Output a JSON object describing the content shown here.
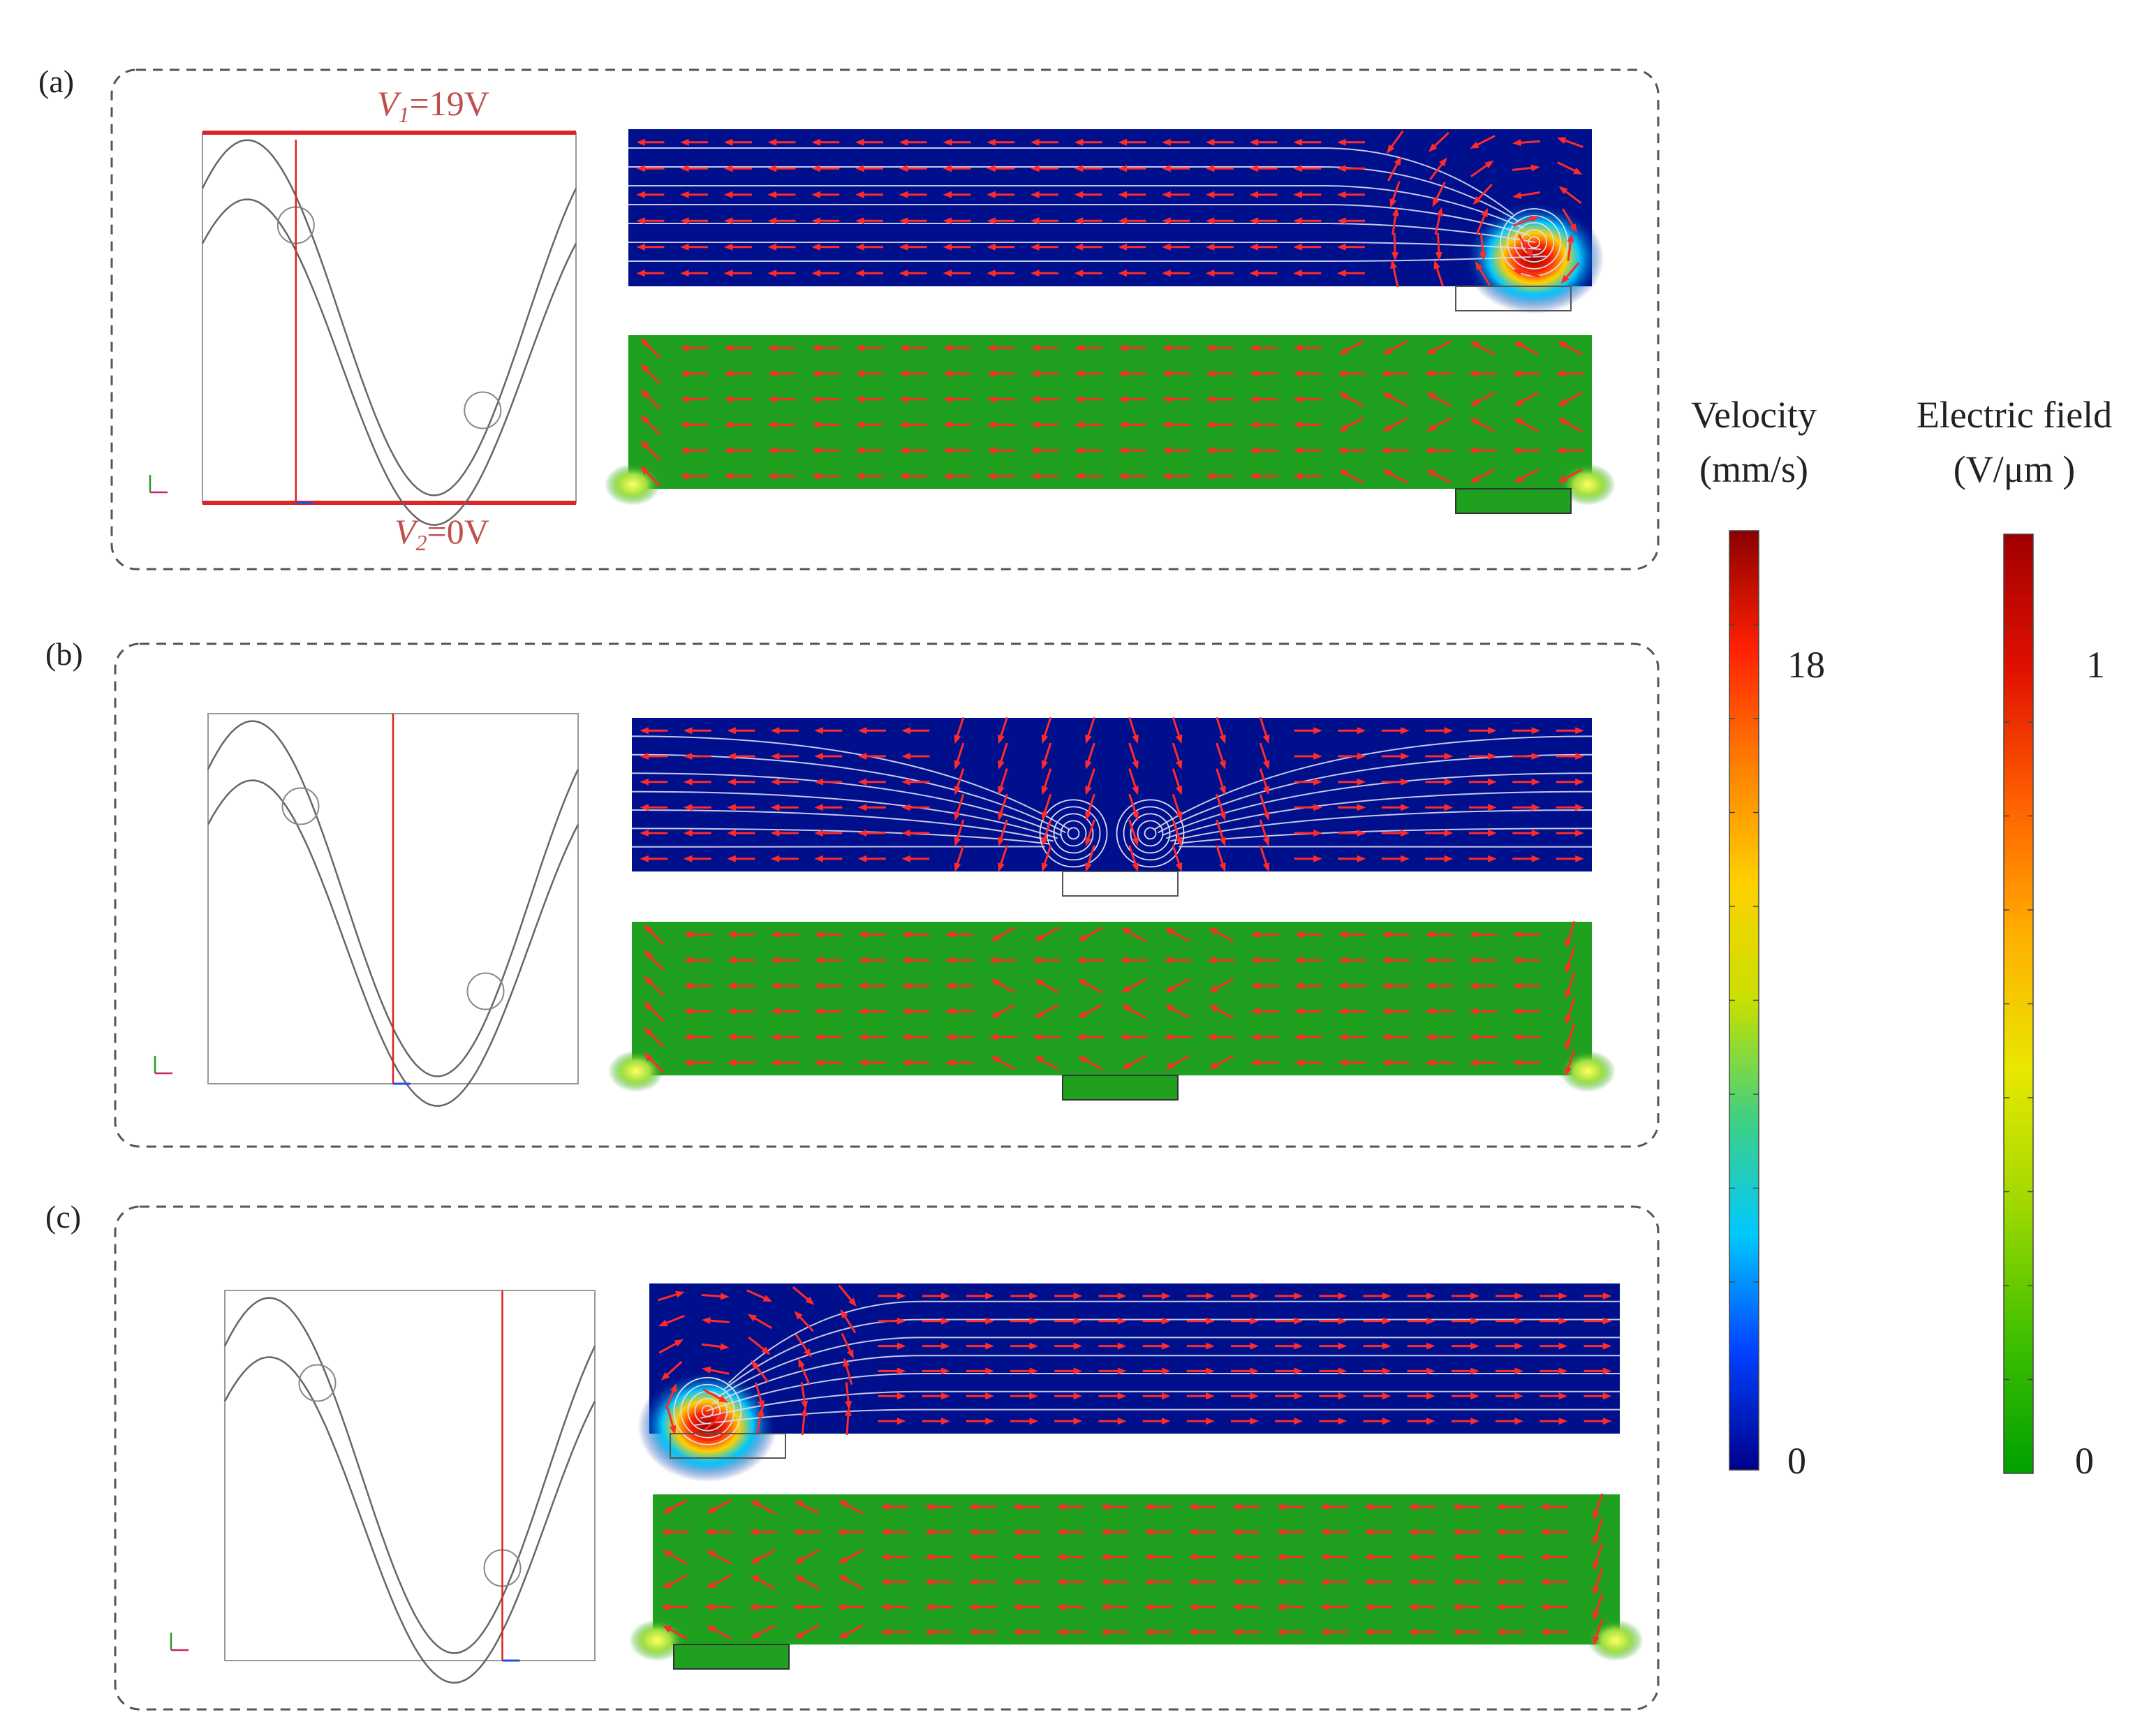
{
  "figure": {
    "panels": [
      {
        "id": "a",
        "label": "(a)",
        "v1_label": "=19V",
        "v2_label": "=0V",
        "line_fraction": 0.25
      },
      {
        "id": "b",
        "label": "(b)",
        "line_fraction": 0.5
      },
      {
        "id": "c",
        "label": "(c)",
        "line_fraction": 0.75
      }
    ],
    "velocity_colorbar": {
      "title_line1": "Velocity",
      "title_line2": "(mm/s)",
      "tick_top": "18",
      "tick_bottom": "0",
      "colors": [
        "#00008b",
        "#0040ff",
        "#00c8ff",
        "#40d080",
        "#c8e000",
        "#ffd000",
        "#ff8000",
        "#ff2000",
        "#8b0000"
      ]
    },
    "efield_colorbar": {
      "title_line1": "Electric field",
      "title_line2": "(V/μm )",
      "tick_top": "1",
      "tick_bottom": "0",
      "colors": [
        "#00a000",
        "#40c000",
        "#a0d800",
        "#e8e800",
        "#ffb000",
        "#ff6000",
        "#e01000",
        "#a00000"
      ]
    },
    "colors": {
      "velocity_bg": "#000f8c",
      "efield_bg": "#1fa01f",
      "arrow": "#ff2a2a",
      "streamline": "#dcdcf0",
      "dashed_frame": "#555555"
    }
  }
}
